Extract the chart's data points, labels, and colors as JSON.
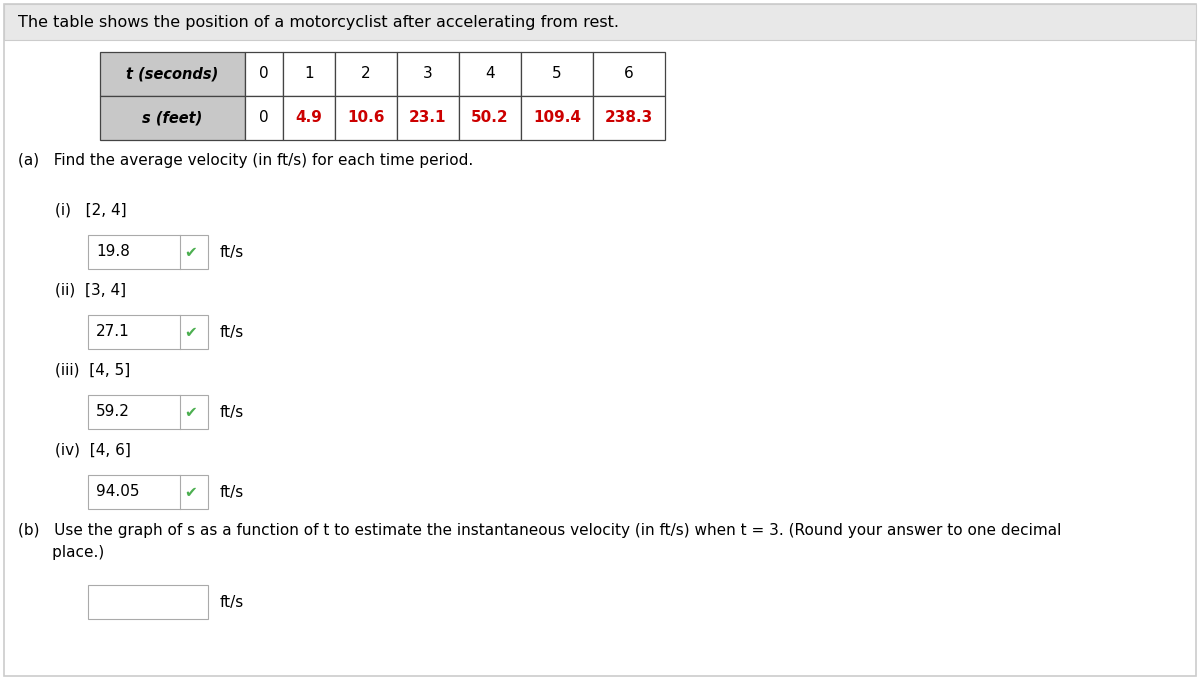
{
  "title": "The table shows the position of a motorcyclist after accelerating from rest.",
  "table_header": [
    "t (seconds)",
    "0",
    "1",
    "2",
    "3",
    "4",
    "5",
    "6"
  ],
  "table_row": [
    "s (feet)",
    "0",
    "4.9",
    "10.6",
    "23.1",
    "50.2",
    "109.4",
    "238.3"
  ],
  "table_data_color": "#cc0000",
  "table_header_bg": "#c8c8c8",
  "table_border_color": "#444444",
  "part_a_label": "(a)   Find the average velocity (in ft/s) for each time period.",
  "sub_items": [
    {
      "label": "(i)   [2, 4]",
      "answer": "19.8",
      "unit": "ft/s"
    },
    {
      "label": "(ii)  [3, 4]",
      "answer": "27.1",
      "unit": "ft/s"
    },
    {
      "label": "(iii)  [4, 5]",
      "answer": "59.2",
      "unit": "ft/s"
    },
    {
      "label": "(iv)  [4, 6]",
      "answer": "94.05",
      "unit": "ft/s"
    }
  ],
  "part_b_line1": "(b)   Use the graph of s as a function of t to estimate the instantaneous velocity (in ft/s) when t = 3. (Round your answer to one decimal",
  "part_b_line2": "       place.)",
  "bg_color": "#ffffff",
  "outer_border_color": "#cccccc",
  "checkmark_color": "#4caf50",
  "text_color": "#000000",
  "box_border_color": "#aaaaaa",
  "fig_width": 12.0,
  "fig_height": 6.8,
  "dpi": 100
}
